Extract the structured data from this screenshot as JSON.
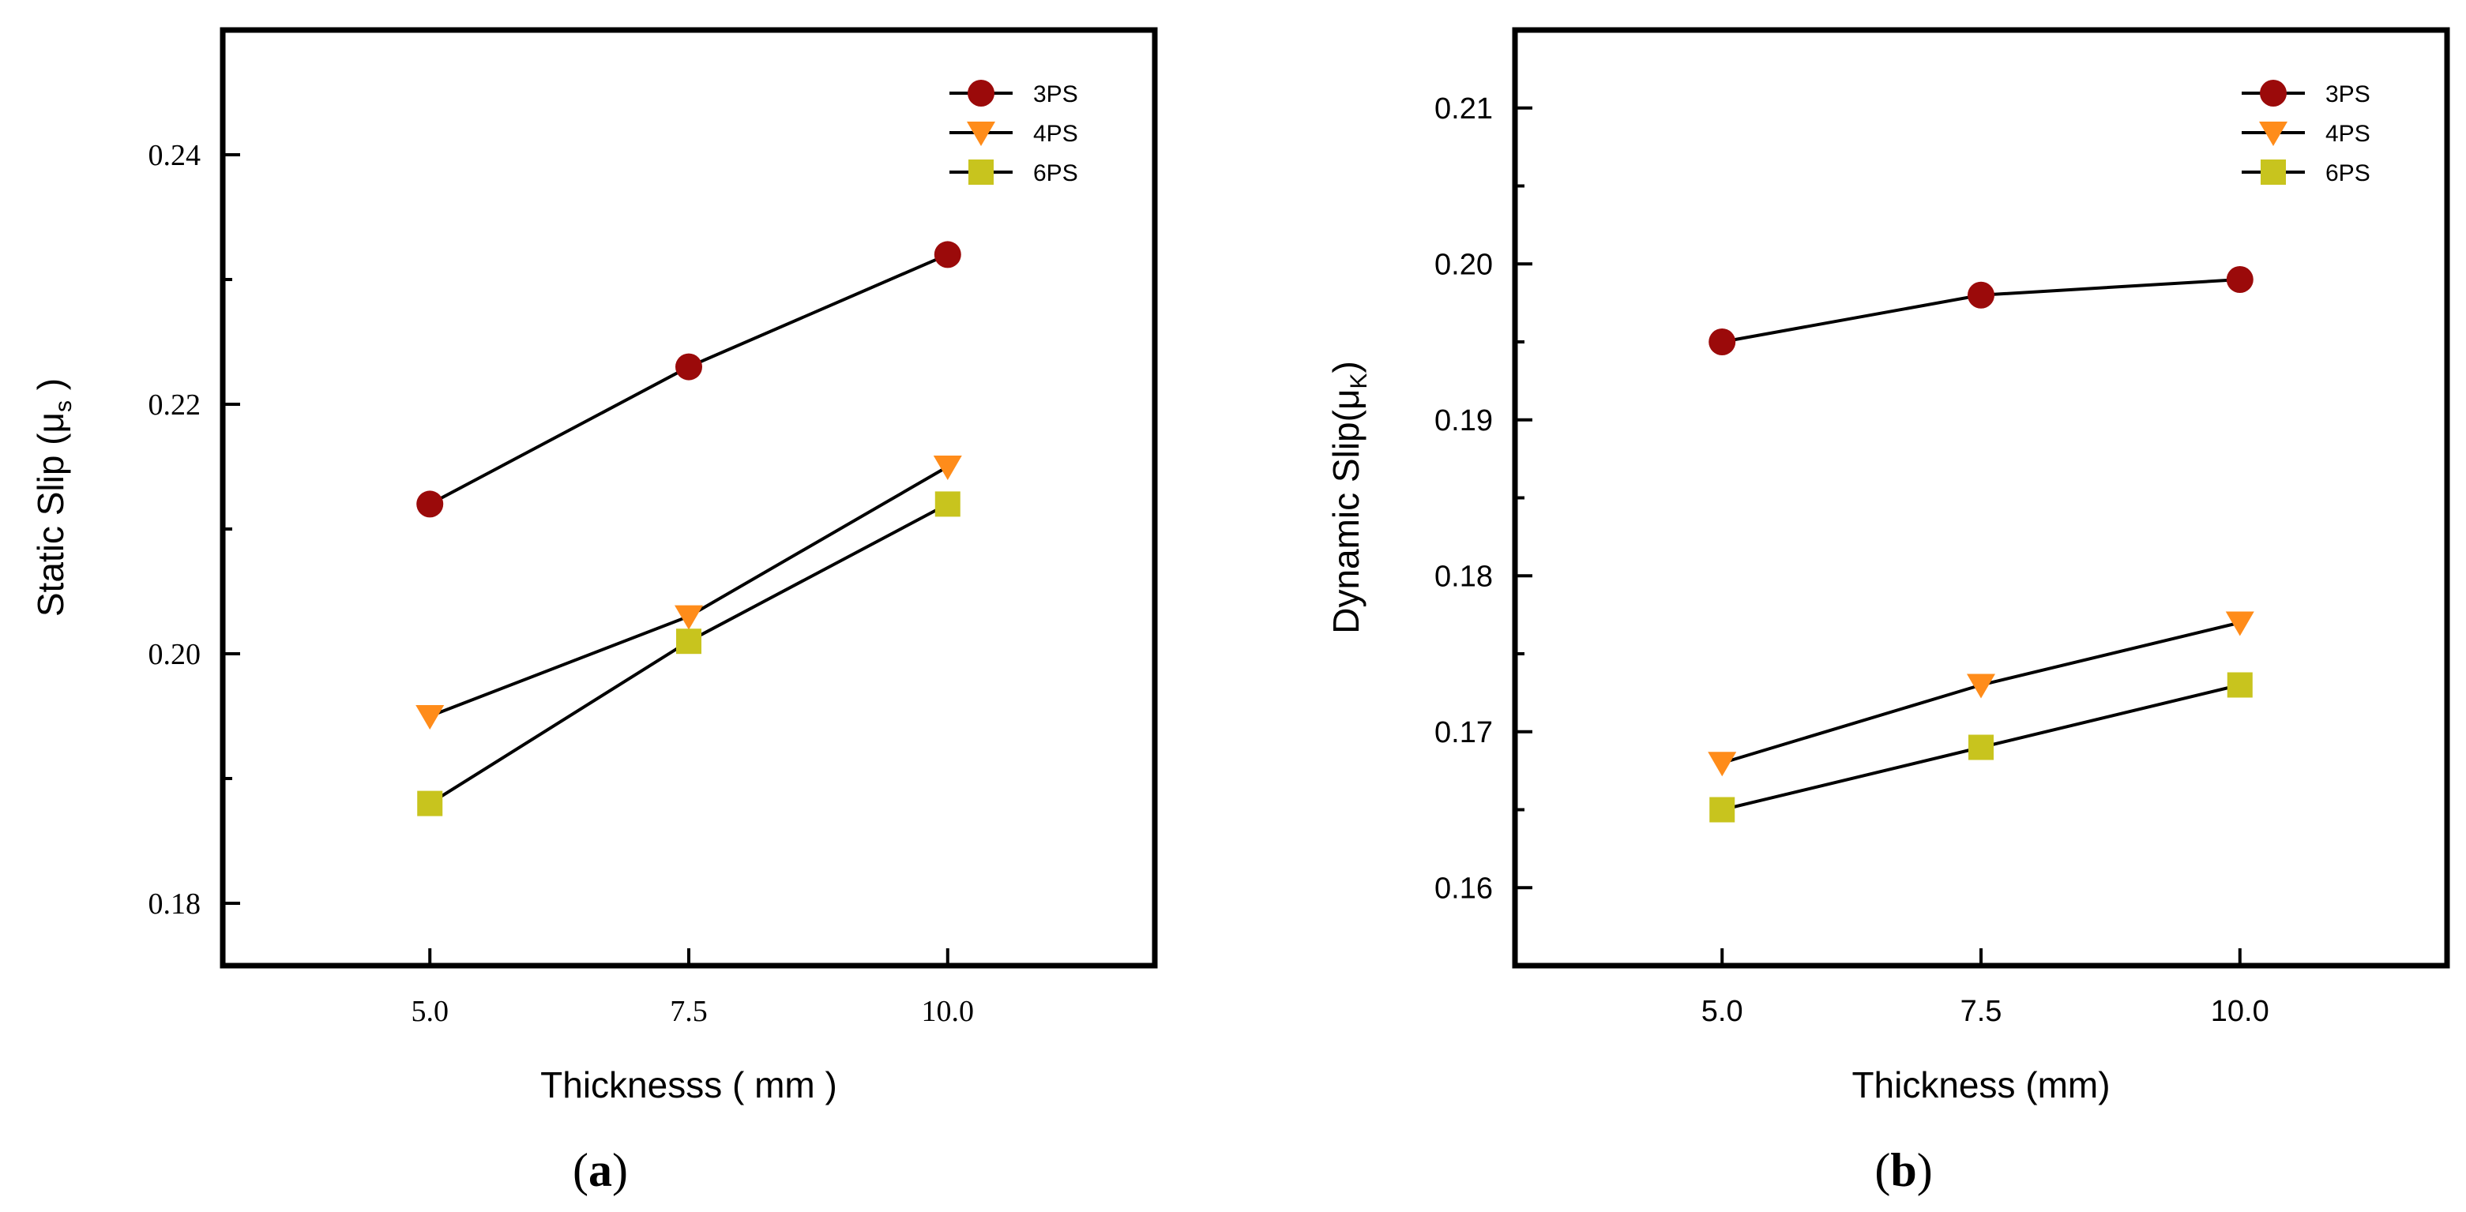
{
  "chart_data": [
    {
      "type": "line",
      "title": "",
      "panel_prefix": "(",
      "panel_letter": "a",
      "panel_suffix": ")",
      "xlabel": "Thicknesss ( mm )",
      "ylabel": "Static Slip (μ",
      "ylabel_sub": "s",
      "ylabel_close": " )",
      "categories": [
        "5.0",
        "7.5",
        "10.0"
      ],
      "x": [
        5.0,
        7.5,
        10.0
      ],
      "xlim": [
        3.0,
        12.0
      ],
      "ylim": [
        0.175,
        0.25
      ],
      "yticks": [
        0.18,
        0.2,
        0.22,
        0.24
      ],
      "ytick_labels": [
        "0.18",
        "0.20",
        "0.22",
        "0.24"
      ],
      "grid": false,
      "legend": "top-right",
      "series": [
        {
          "name": "3PS",
          "marker": "circle",
          "color": "#9b0a0a",
          "values": [
            0.212,
            0.223,
            0.232
          ]
        },
        {
          "name": "4PS",
          "marker": "triangle-down",
          "color": "#ff8c1a",
          "values": [
            0.195,
            0.203,
            0.215
          ]
        },
        {
          "name": "6PS",
          "marker": "square",
          "color": "#c8c41e",
          "values": [
            0.188,
            0.201,
            0.212
          ]
        }
      ]
    },
    {
      "type": "line",
      "title": "",
      "panel_prefix": "(",
      "panel_letter": "b",
      "panel_suffix": ")",
      "xlabel": "Thickness (mm)",
      "ylabel": "Dynamic Slip(μ",
      "ylabel_sub": "K",
      "ylabel_close": ")",
      "categories": [
        "5.0",
        "7.5",
        "10.0"
      ],
      "x": [
        5.0,
        7.5,
        10.0
      ],
      "xlim": [
        3.0,
        12.0
      ],
      "ylim": [
        0.155,
        0.215
      ],
      "yticks": [
        0.16,
        0.17,
        0.18,
        0.19,
        0.2,
        0.21
      ],
      "ytick_labels": [
        "0.16",
        "0.17",
        "0.18",
        "0.19",
        "0.20",
        "0.21"
      ],
      "grid": false,
      "legend": "top-right",
      "series": [
        {
          "name": "3PS",
          "marker": "circle",
          "color": "#9b0a0a",
          "values": [
            0.195,
            0.198,
            0.199
          ]
        },
        {
          "name": "4PS",
          "marker": "triangle-down",
          "color": "#ff8c1a",
          "values": [
            0.168,
            0.173,
            0.177
          ]
        },
        {
          "name": "6PS",
          "marker": "square",
          "color": "#c8c41e",
          "values": [
            0.165,
            0.169,
            0.173
          ]
        }
      ]
    }
  ]
}
